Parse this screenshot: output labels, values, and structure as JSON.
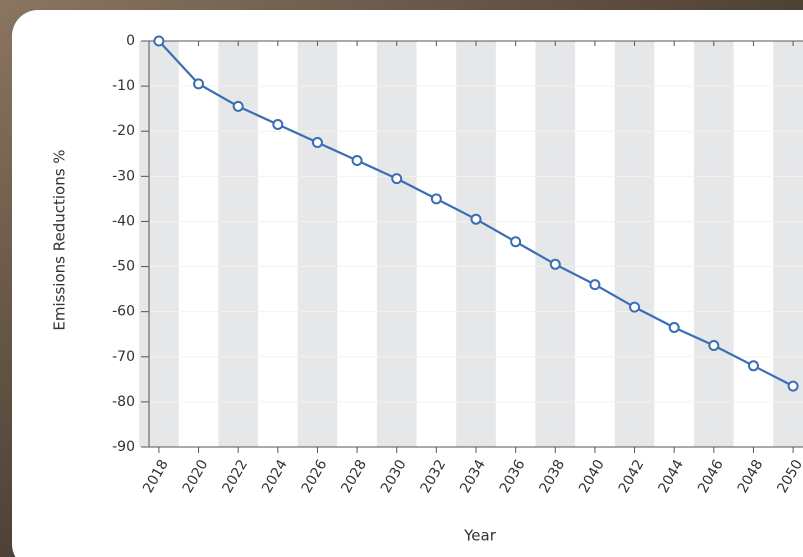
{
  "chart_data": {
    "type": "line",
    "x_label": "Year",
    "y_label": "Emissions Reductions %",
    "x": [
      2018,
      2020,
      2022,
      2024,
      2026,
      2028,
      2030,
      2032,
      2034,
      2036,
      2038,
      2040,
      2042,
      2044,
      2046,
      2048,
      2050
    ],
    "series": [
      {
        "color": "#3a6db3",
        "values": [
          0,
          -9.5,
          -14.5,
          -18.5,
          -22.5,
          -26.5,
          -30.5,
          -35,
          -39.5,
          -44.5,
          -49.5,
          -54,
          -59,
          -63.5,
          -67.5,
          -72,
          -76.5
        ]
      }
    ],
    "xlim": [
      2017.5,
      2050.5
    ],
    "xticks": [
      2018,
      2020,
      2022,
      2024,
      2026,
      2028,
      2030,
      2032,
      2034,
      2036,
      2038,
      2040,
      2042,
      2044,
      2046,
      2048,
      2050
    ],
    "ylim": [
      -90,
      0
    ],
    "yticks": [
      0,
      -10,
      -20,
      -30,
      -40,
      -50,
      -60,
      -70,
      -80,
      -90
    ]
  }
}
